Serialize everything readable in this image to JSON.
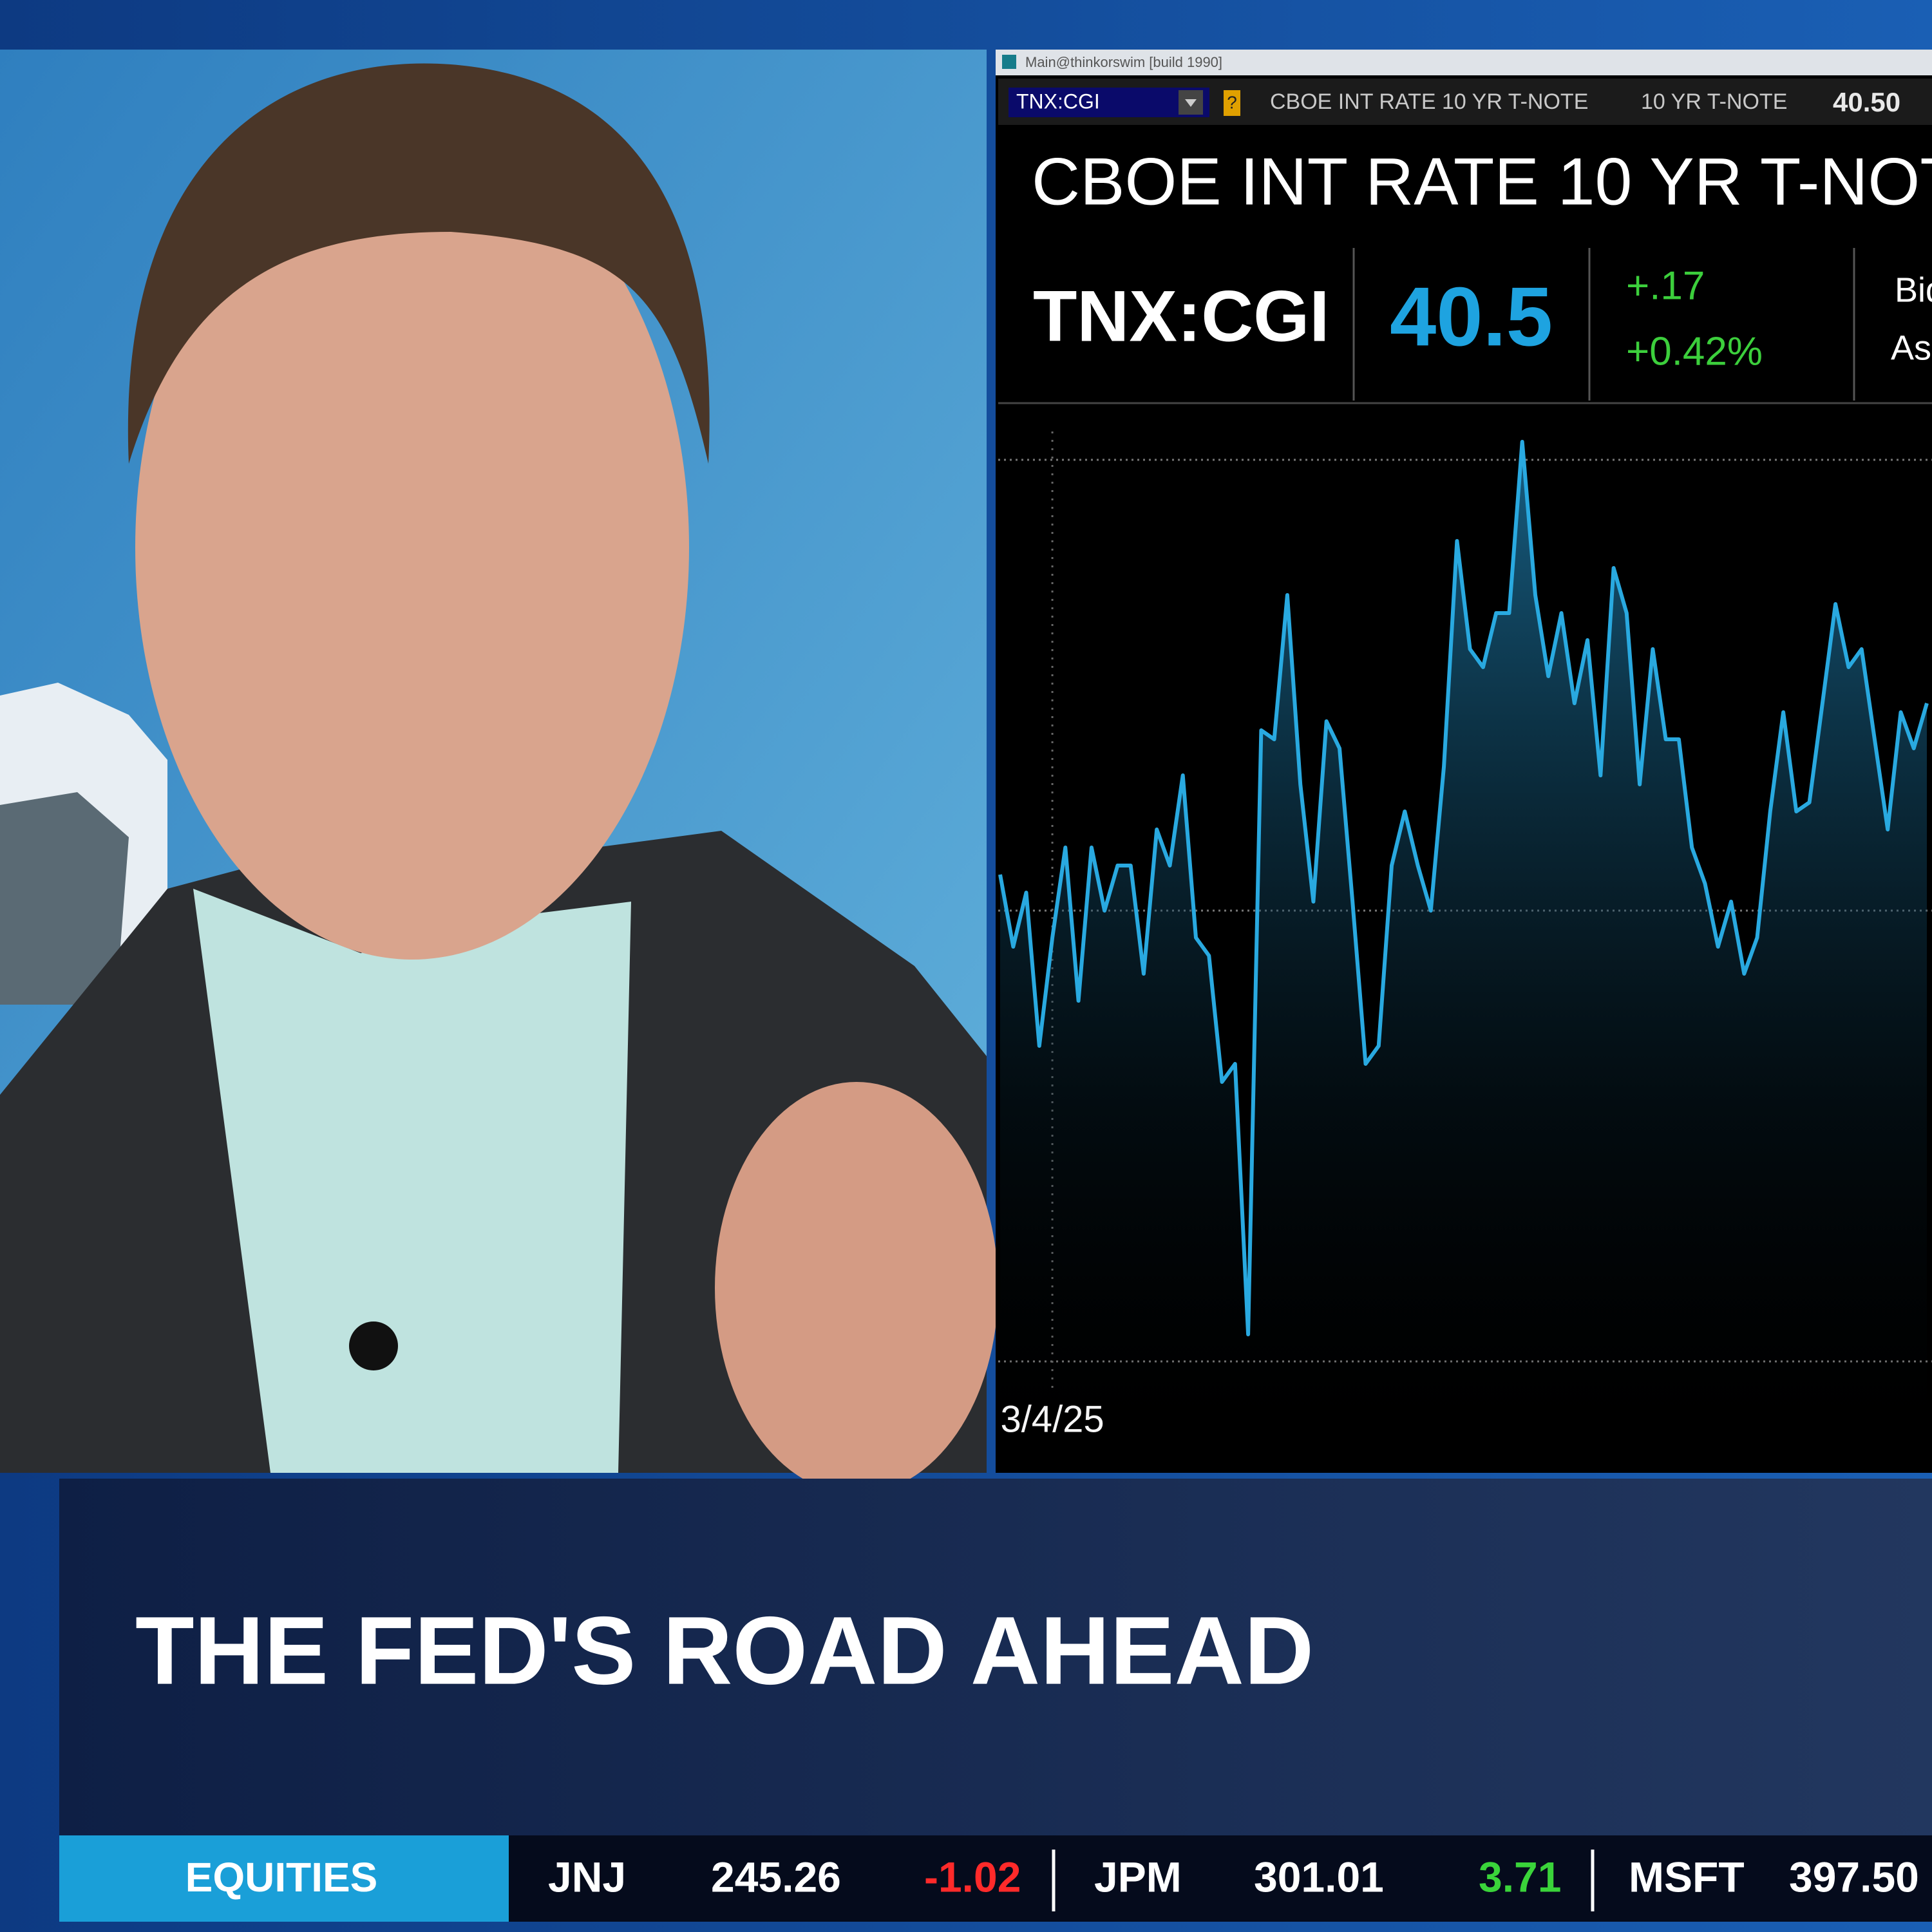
{
  "window": {
    "title_bar": "Main@thinkorswim [build 1990]",
    "toolbar": {
      "symbol": "TNX:CGI",
      "description": "CBOE INT RATE 10 YR T-NOTE",
      "short_name": "10 YR T-NOTE",
      "last": "40.50"
    }
  },
  "quote": {
    "title": "CBOE INT RATE 10 YR T-NOTE",
    "symbol": "TNX:CGI",
    "last": "40.5",
    "change": "+.17",
    "change_percent": "+0.42%",
    "bid_label": "Bid",
    "ask_label": "Ask"
  },
  "chart_data": {
    "type": "line",
    "color": "#29a9e0",
    "grid": true,
    "ylim": [
      0,
      100
    ],
    "yticks": [
      0,
      50,
      100
    ],
    "categories": [
      null,
      null,
      null,
      null,
      "3/4/25",
      null,
      null,
      null,
      null,
      null,
      null,
      null,
      null,
      null,
      null,
      null,
      null,
      null,
      null,
      null,
      null,
      null,
      null,
      null,
      null,
      null,
      null,
      null,
      null,
      null,
      null,
      null,
      null,
      null,
      null,
      null,
      null,
      null,
      null,
      null,
      null,
      null,
      null,
      null,
      null,
      null,
      null,
      null,
      null,
      null,
      null,
      null,
      null,
      null,
      null,
      null,
      null,
      null,
      null,
      null,
      null,
      null,
      null,
      null,
      null,
      null,
      null,
      null,
      null,
      null,
      null,
      null
    ],
    "values": [
      54,
      46,
      52,
      35,
      47,
      57,
      40,
      57,
      50,
      55,
      55,
      43,
      59,
      55,
      65,
      47,
      45,
      31,
      33,
      3,
      70,
      69,
      85,
      64,
      51,
      71,
      68,
      51,
      33,
      35,
      55,
      61,
      55,
      50,
      66,
      91,
      79,
      77,
      83,
      83,
      102,
      85,
      76,
      83,
      73,
      80,
      65,
      88,
      83,
      64,
      79,
      69,
      69,
      57,
      53,
      46,
      51,
      43,
      47,
      61,
      72,
      61,
      62,
      73,
      84,
      77,
      79,
      69,
      59,
      72,
      68,
      73
    ]
  },
  "headline": "THE FED'S ROAD AHEAD",
  "ticker": {
    "label": "EQUITIES",
    "items": [
      {
        "symbol": "JNJ",
        "price": "245.26",
        "change": "-1.02",
        "direction": "down"
      },
      {
        "symbol": "JPM",
        "price": "301.01",
        "change": "3.71",
        "direction": "up"
      },
      {
        "symbol": "MSFT",
        "price": "397.50",
        "change": null,
        "direction": null
      }
    ]
  }
}
